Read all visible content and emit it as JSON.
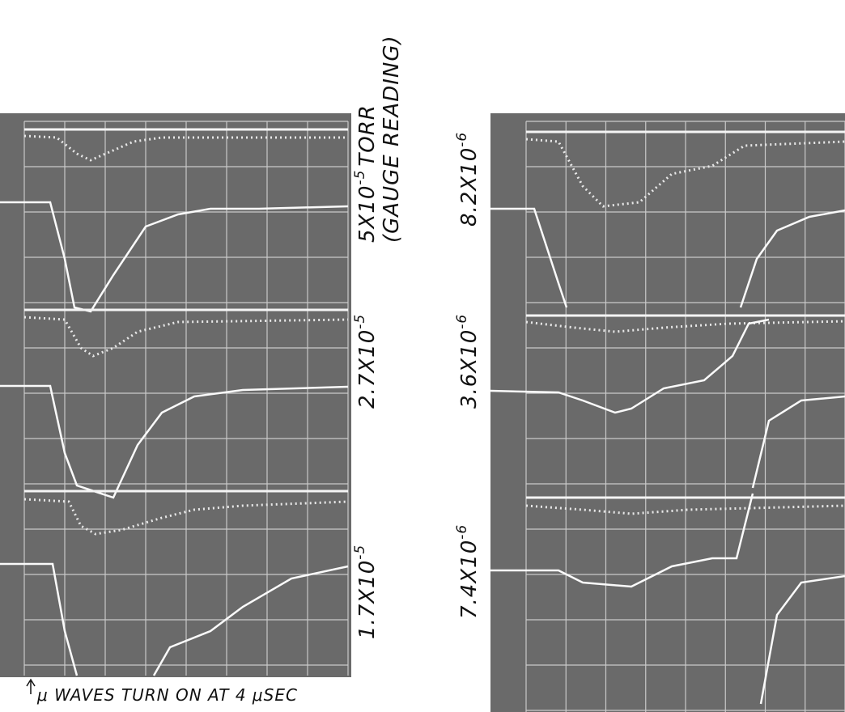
{
  "labels": [
    {
      "base": "5X10",
      "exp": "-5",
      "unit": "TORR",
      "note": "(GAUGE READING)"
    },
    {
      "base": "2.7X10",
      "exp": "-5"
    },
    {
      "base": "1.7X10",
      "exp": "-5"
    },
    {
      "base": "8.2X10",
      "exp": "-6"
    },
    {
      "base": "3.6X10",
      "exp": "-6"
    },
    {
      "base": "7.4X10",
      "exp": "-6"
    }
  ],
  "caption": "μ WAVES TURN ON AT 4 μSEC"
}
